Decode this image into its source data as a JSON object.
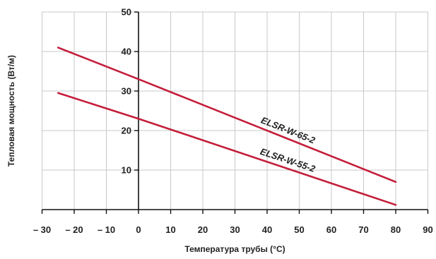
{
  "chart_data": {
    "type": "line",
    "xlabel": "Температура трубы (°C)",
    "ylabel": "Тепловая мощность (Вт/м)",
    "xlim": [
      -30,
      90
    ],
    "ylim": [
      0,
      50
    ],
    "x_ticks": [
      -30,
      -20,
      -10,
      0,
      10,
      20,
      30,
      40,
      50,
      60,
      70,
      80,
      90
    ],
    "x_tick_labels": [
      "– 30",
      "– 20",
      "– 10",
      "0",
      "10",
      "20",
      "30",
      "40",
      "50",
      "60",
      "70",
      "80",
      "90"
    ],
    "y_ticks": [
      10,
      20,
      30,
      40,
      50
    ],
    "y_tick_labels": [
      "10",
      "20",
      "30",
      "40",
      "50"
    ],
    "grid": true,
    "series": [
      {
        "name": "ELSR-W-65-2",
        "color": "#c41e3a",
        "x": [
          -25,
          0,
          80
        ],
        "y": [
          41,
          33,
          7
        ]
      },
      {
        "name": "ELSR-W-55-2",
        "color": "#c41e3a",
        "x": [
          -25,
          0,
          80
        ],
        "y": [
          29.5,
          23,
          1.2
        ]
      }
    ]
  }
}
